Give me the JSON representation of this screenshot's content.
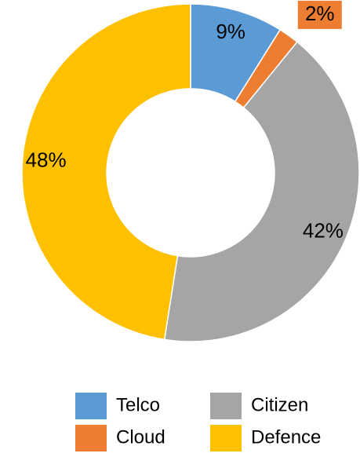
{
  "chart_data": {
    "type": "donut",
    "categories": [
      "Telco",
      "Cloud",
      "Citizen",
      "Defence"
    ],
    "values": [
      9,
      2,
      42,
      48
    ],
    "value_labels": [
      "9%",
      "2%",
      "42%",
      "48%"
    ],
    "colors": [
      "#5b9bd5",
      "#ed7d31",
      "#a5a5a5",
      "#ffc000"
    ],
    "legend": "bottom"
  }
}
